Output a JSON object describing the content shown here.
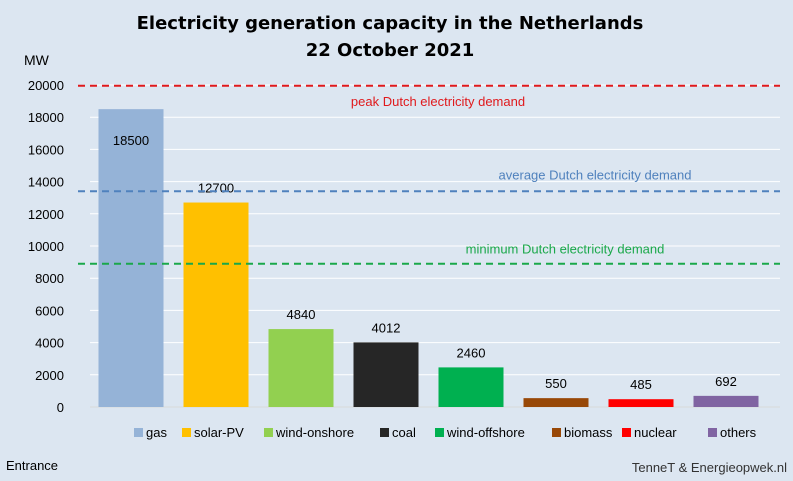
{
  "chart_data": {
    "type": "bar",
    "title": "Electricity generation capacity in the Netherlands",
    "subtitle": "22 October 2021",
    "ylabel": "MW",
    "ylim": [
      0,
      20000
    ],
    "yticks": [
      "0",
      "2000",
      "4000",
      "6000",
      "8000",
      "10000",
      "12000",
      "14000",
      "16000",
      "18000",
      "20000"
    ],
    "grid": true,
    "legend_position": "bottom",
    "categories": [
      "gas",
      "solar-PV",
      "wind-onshore",
      "coal",
      "wind-offshore",
      "biomass",
      "nuclear",
      "others"
    ],
    "values": [
      18500,
      12700,
      4840,
      4012,
      2460,
      550,
      485,
      692
    ],
    "value_labels": [
      "18500",
      "12700",
      "4840",
      "4012",
      "2460",
      "550",
      "485",
      "692"
    ],
    "colors": [
      "#95b3d7",
      "#ffc000",
      "#92d050",
      "#262626",
      "#00b050",
      "#984807",
      "#ff0000",
      "#8064a2"
    ],
    "reference_lines": [
      {
        "label": "peak Dutch electricity demand",
        "value": 19950,
        "color": "#e0191c"
      },
      {
        "label": "average Dutch electricity demand",
        "value": 13400,
        "color": "#4f81bd"
      },
      {
        "label": "minimum Dutch electricity demand",
        "value": 8900,
        "color": "#1aa84a"
      }
    ]
  },
  "footer": {
    "left": "Entrance",
    "right": "TenneT & Energieopwek.nl"
  }
}
